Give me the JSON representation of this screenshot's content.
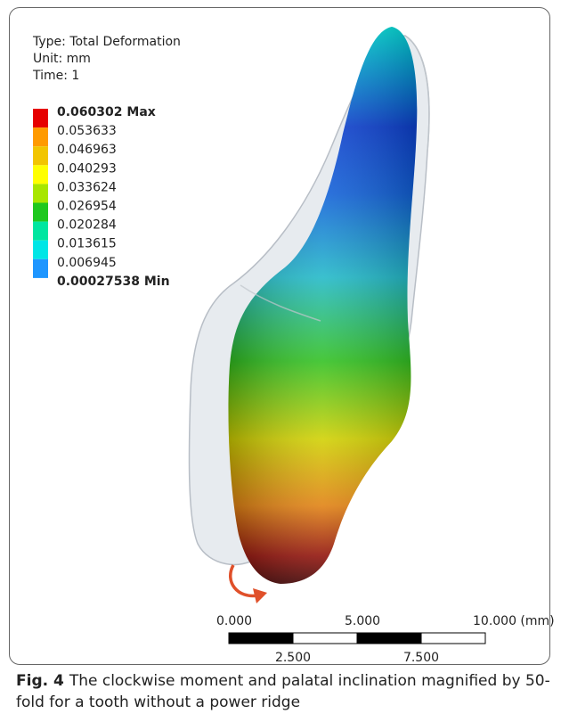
{
  "header": {
    "type": "Type: Total Deformation",
    "unit": "Unit: mm",
    "time": "Time: 1"
  },
  "legend": {
    "labels": [
      "0.060302 Max",
      "0.053633",
      "0.046963",
      "0.040293",
      "0.033624",
      "0.026954",
      "0.020284",
      "0.013615",
      "0.006945",
      "0.00027538 Min"
    ],
    "colors": [
      "#e60000",
      "#ff9a00",
      "#f2c500",
      "#ffff00",
      "#a8e600",
      "#1ec81e",
      "#00e6a0",
      "#00e6e6",
      "#1e96ff",
      "#0000e6"
    ]
  },
  "scale_bar": {
    "top_labels": [
      "0.000",
      "5.000",
      "10.000 (mm)"
    ],
    "bottom_labels": [
      "2.500",
      "7.500"
    ]
  },
  "caption": {
    "label": "Fig. 4",
    "text": "The clockwise moment and palatal inclination magnified by 50-fold for a tooth without a power ridge"
  }
}
